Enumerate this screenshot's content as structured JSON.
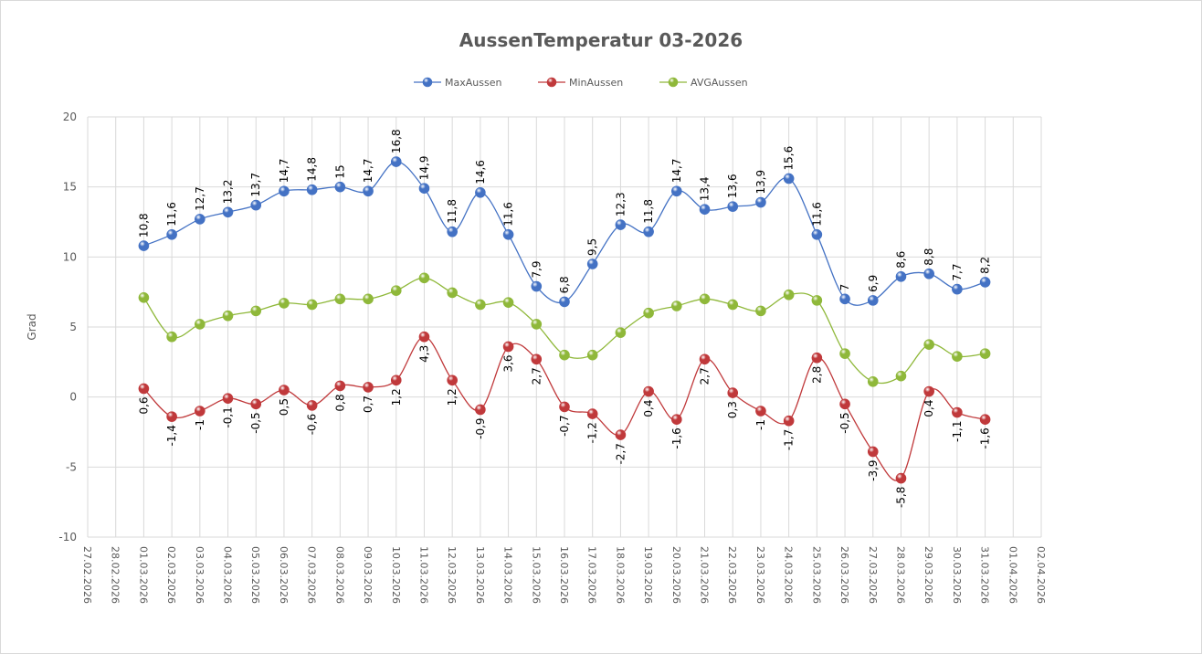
{
  "chart_data": {
    "type": "line",
    "title": "AussenTemperatur 03-2026",
    "xlabel": "",
    "ylabel": "Grad",
    "ylim": [
      -10,
      20
    ],
    "yticks": [
      20,
      15,
      10,
      5,
      0,
      -5,
      -10
    ],
    "grid": true,
    "legend_position": "top",
    "x_ticks": [
      "27.02.2026",
      "28.02.2026",
      "01.03.2026",
      "02.03.2026",
      "03.03.2026",
      "04.03.2026",
      "05.03.2026",
      "06.03.2026",
      "07.03.2026",
      "08.03.2026",
      "09.03.2026",
      "10.03.2026",
      "11.03.2026",
      "12.03.2026",
      "13.03.2026",
      "14.03.2026",
      "15.03.2026",
      "16.03.2026",
      "17.03.2026",
      "18.03.2026",
      "19.03.2026",
      "20.03.2026",
      "21.03.2026",
      "22.03.2026",
      "23.03.2026",
      "24.03.2026",
      "25.03.2026",
      "26.03.2026",
      "27.03.2026",
      "28.03.2026",
      "29.03.2026",
      "30.03.2026",
      "31.03.2026",
      "01.04.2026",
      "02.04.2026"
    ],
    "x": [
      "01.03.2026",
      "02.03.2026",
      "03.03.2026",
      "04.03.2026",
      "05.03.2026",
      "06.03.2026",
      "07.03.2026",
      "08.03.2026",
      "09.03.2026",
      "10.03.2026",
      "11.03.2026",
      "12.03.2026",
      "13.03.2026",
      "14.03.2026",
      "15.03.2026",
      "16.03.2026",
      "17.03.2026",
      "18.03.2026",
      "19.03.2026",
      "20.03.2026",
      "21.03.2026",
      "22.03.2026",
      "23.03.2026",
      "24.03.2026",
      "25.03.2026",
      "26.03.2026",
      "27.03.2026",
      "28.03.2026",
      "29.03.2026",
      "30.03.2026",
      "31.03.2026"
    ],
    "series": [
      {
        "name": "MaxAussen",
        "color": "#4472c4",
        "labels": "above",
        "values": [
          10.8,
          11.6,
          12.7,
          13.2,
          13.7,
          14.7,
          14.8,
          15,
          14.7,
          16.8,
          14.9,
          11.8,
          14.6,
          11.6,
          7.9,
          6.8,
          9.5,
          12.3,
          11.8,
          14.7,
          13.4,
          13.6,
          13.9,
          15.6,
          11.6,
          7,
          6.9,
          8.6,
          8.8,
          7.7,
          8.2
        ],
        "value_labels": [
          "10,8",
          "11,6",
          "12,7",
          "13,2",
          "13,7",
          "14,7",
          "14,8",
          "15",
          "14,7",
          "16,8",
          "14,9",
          "11,8",
          "14,6",
          "11,6",
          "7,9",
          "6,8",
          "9,5",
          "12,3",
          "11,8",
          "14,7",
          "13,4",
          "13,6",
          "13,9",
          "15,6",
          "11,6",
          "7",
          "6,9",
          "8,6",
          "8,8",
          "7,7",
          "8,2"
        ]
      },
      {
        "name": "MinAussen",
        "color": "#c0393b",
        "labels": "below",
        "values": [
          0.6,
          -1.4,
          -1,
          -0.1,
          -0.5,
          0.5,
          -0.6,
          0.8,
          0.7,
          1.2,
          4.3,
          1.2,
          -0.9,
          3.6,
          2.7,
          -0.7,
          -1.2,
          -2.7,
          0.4,
          -1.6,
          2.7,
          0.3,
          -1,
          -1.7,
          2.8,
          -0.5,
          -3.9,
          -5.8,
          0.4,
          -1.1,
          -1.6
        ],
        "value_labels": [
          "0,6",
          "-1,4",
          "-1",
          "-0,1",
          "-0,5",
          "0,5",
          "-0,6",
          "0,8",
          "0,7",
          "1,2",
          "4,3",
          "1,2",
          "-0,9",
          "3,6",
          "2,7",
          "-0,7",
          "-1,2",
          "-2,7",
          "0,4",
          "-1,6",
          "2,7",
          "0,3",
          "-1",
          "-1,7",
          "2,8",
          "-0,5",
          "-3,9",
          "-5,8",
          "0,4",
          "-1,1",
          "-1,6"
        ]
      },
      {
        "name": "AVGAussen",
        "color": "#8fb83a",
        "labels": "none",
        "values": [
          7.1,
          4.3,
          5.2,
          5.8,
          6.15,
          6.7,
          6.6,
          7.0,
          7.0,
          7.6,
          8.5,
          7.45,
          6.6,
          6.75,
          5.2,
          3.0,
          3.0,
          4.6,
          6.0,
          6.5,
          7.0,
          6.6,
          6.15,
          7.3,
          6.9,
          3.1,
          1.1,
          1.5,
          3.75,
          2.9,
          3.1
        ]
      }
    ]
  }
}
